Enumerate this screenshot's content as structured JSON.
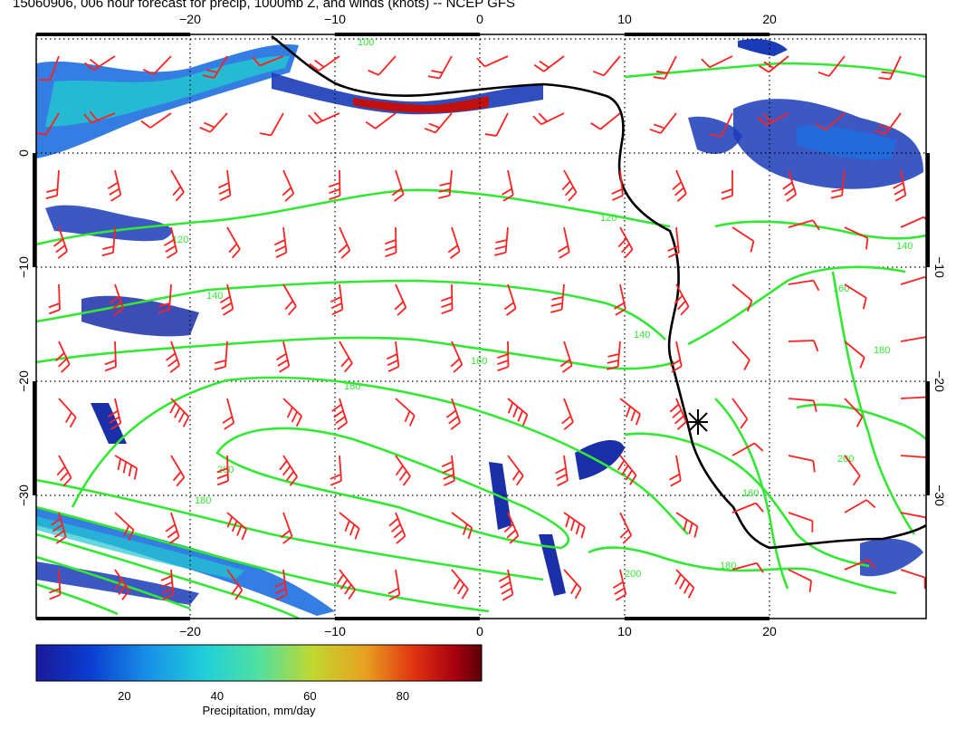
{
  "title": "15060906, 006 hour forecast for precip, 1000mb Z, and winds (knots) -- NCEP GFS",
  "map": {
    "lon_range": [
      -30,
      30
    ],
    "lat_range": [
      -40,
      9
    ],
    "lon_ticks": [
      {
        "value": -20,
        "label": "−20"
      },
      {
        "value": -10,
        "label": "−10"
      },
      {
        "value": 0,
        "label": "0"
      },
      {
        "value": 10,
        "label": "10"
      },
      {
        "value": 20,
        "label": "20"
      }
    ],
    "lat_ticks": [
      {
        "value": 0,
        "label": "0"
      },
      {
        "value": -10,
        "label": "−10"
      },
      {
        "value": -20,
        "label": "−20"
      },
      {
        "value": -30,
        "label": "−30"
      }
    ],
    "grid": "dotted",
    "coastline_color": "#000000",
    "contour_color": "#33e833",
    "wind_color": "#ff2020",
    "contour_labels": [
      "100",
      "120",
      "120",
      "140",
      "140",
      "160",
      "160",
      "180",
      "180",
      "180",
      "200",
      "200",
      "140",
      "160",
      "180",
      "200"
    ],
    "marker": "asterisk"
  },
  "colorbar": {
    "label": "Precipitation, mm/day",
    "ticks": [
      {
        "value": 20,
        "label": "20"
      },
      {
        "value": 40,
        "label": "40"
      },
      {
        "value": 60,
        "label": "60"
      },
      {
        "value": 80,
        "label": "80"
      }
    ],
    "range": [
      1,
      97
    ],
    "colors": [
      "#1a1a9a",
      "#0a3cd0",
      "#1890e8",
      "#20d0d8",
      "#50e0a0",
      "#c0d830",
      "#e8a020",
      "#e03010",
      "#a80010",
      "#5a0008"
    ]
  }
}
